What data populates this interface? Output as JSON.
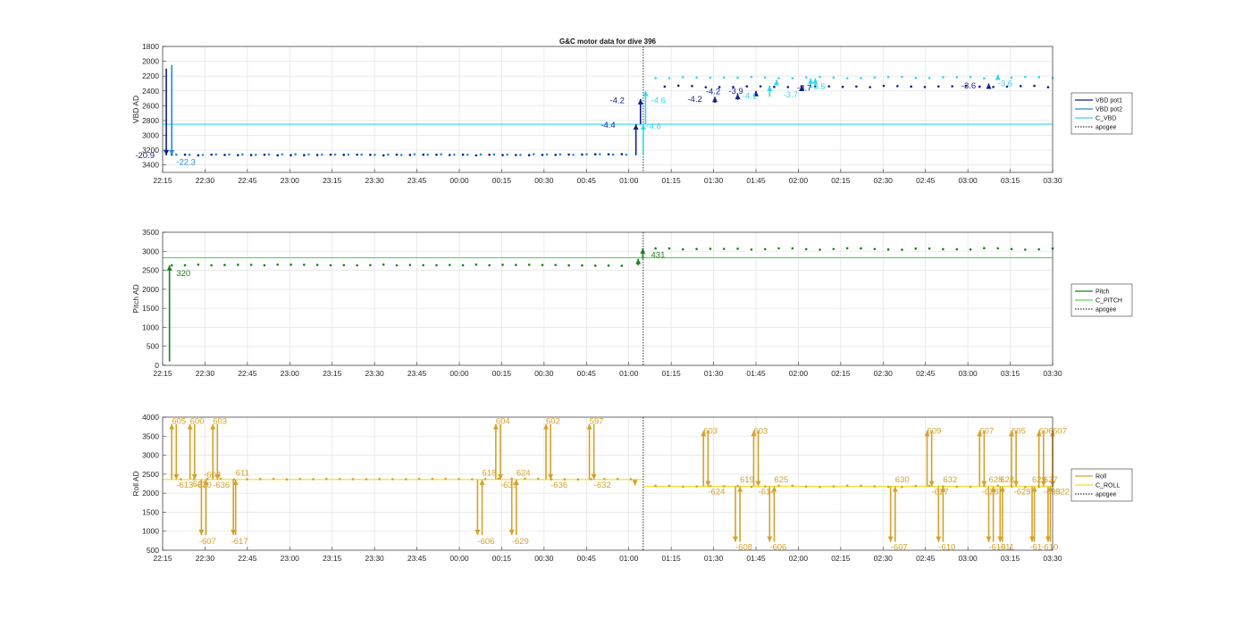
{
  "chart_data": [
    {
      "type": "line",
      "title": "G&C motor data for dive 396",
      "xlabel": "",
      "ylabel": "VBD AD",
      "x_ticks": [
        "22:15",
        "22:30",
        "22:45",
        "23:00",
        "23:15",
        "23:30",
        "23:45",
        "00:00",
        "00:15",
        "00:30",
        "00:45",
        "01:00",
        "01:15",
        "01:30",
        "01:45",
        "02:00",
        "02:15",
        "02:30",
        "02:45",
        "03:00",
        "03:15",
        "03:30"
      ],
      "y_ticks": [
        "1800",
        "2000",
        "2200",
        "2400",
        "2600",
        "2800",
        "3000",
        "3200",
        "3400"
      ],
      "ylim": [
        1800,
        3500
      ],
      "y_reversed": true,
      "x_range_min": [
        0,
        195
      ],
      "grid": true,
      "legend_placement": "right",
      "apogee_min": 105.3,
      "legend": [
        {
          "name": "VBD pot1",
          "color": "#0f1f8c",
          "style": "solid"
        },
        {
          "name": "VBD pot2",
          "color": "#1f8fd8",
          "style": "solid"
        },
        {
          "name": "C_VBD",
          "color": "#33d6f0",
          "style": "solid"
        },
        {
          "name": "apogee",
          "color": "#333333",
          "style": "dotted"
        }
      ],
      "series": [
        {
          "name": "C_VBD",
          "type": "hline",
          "y": 2850,
          "color": "#33d6f0"
        },
        {
          "name": "VBD pot1",
          "color": "#0f1f8c",
          "x_start": 2,
          "x_end": 103,
          "x_step": 2.9,
          "y": 3260
        },
        {
          "name": "VBD pot2",
          "color": "#1f8fd8",
          "x_start": 3,
          "x_end": 103,
          "x_step": 2.9,
          "y": 3255
        },
        {
          "name": "VBD pot1",
          "color": "#0f1f8c",
          "x_start": 110,
          "x_end": 195,
          "x_step": 3,
          "y": 2340
        },
        {
          "name": "VBD pot2",
          "color": "#33d6f0",
          "x_start": 108,
          "x_end": 195,
          "x_step": 3,
          "y": 2220
        }
      ],
      "moves": [
        {
          "x": 0.8,
          "y0": 2100,
          "y1": 3270,
          "color": "#0f1f8c",
          "label": "-20.9",
          "lx": -6,
          "ly": 3270
        },
        {
          "x": 2.0,
          "y0": 2050,
          "y1": 3270,
          "color": "#1f8fd8",
          "label": "-22.3",
          "lx": 3,
          "ly": 3360
        },
        {
          "x": 103.7,
          "y0": 3270,
          "y1": 2850,
          "color": "#0f1f8c",
          "label": "-4.4",
          "lx": 96,
          "ly": 2860
        },
        {
          "x": 104.7,
          "y0": 2850,
          "y1": 2510,
          "color": "#0f1f8c",
          "label": "-4.2",
          "lx": 98,
          "ly": 2530
        },
        {
          "x": 105.3,
          "y0": 3250,
          "y1": 2850,
          "color": "#33d6f0",
          "label": "-4.8",
          "lx": 106,
          "ly": 2880
        },
        {
          "x": 105.8,
          "y0": 2850,
          "y1": 2400,
          "color": "#33d6f0",
          "label": "-4.6",
          "lx": 107,
          "ly": 2530
        },
        {
          "x": 121,
          "y0": 2560,
          "y1": 2480,
          "color": "#0f1f8c",
          "label": "-4.2",
          "lx": 115,
          "ly": 2510
        },
        {
          "x": 126,
          "y0": 2520,
          "y1": 2440,
          "color": "#0f1f8c",
          "label": "-4.2",
          "lx": 119,
          "ly": 2410
        },
        {
          "x": 130,
          "y0": 2460,
          "y1": 2400,
          "color": "#0f1f8c",
          "label": "-3.9",
          "lx": 124,
          "ly": 2400
        },
        {
          "x": 133,
          "y0": 2480,
          "y1": 2330,
          "color": "#33d6f0",
          "label": "-4.1",
          "lx": 127,
          "ly": 2470
        },
        {
          "x": 134.5,
          "y0": 2320,
          "y1": 2250,
          "color": "#33d6f0",
          "label": "",
          "lx": 0,
          "ly": 0
        },
        {
          "x": 142,
          "y0": 2360,
          "y1": 2230,
          "color": "#33d6f0",
          "label": "-3.7",
          "lx": 136,
          "ly": 2450
        },
        {
          "x": 143,
          "y0": 2330,
          "y1": 2230,
          "color": "#33d6f0",
          "label": "-3.5",
          "lx": 142,
          "ly": 2340
        },
        {
          "x": 140,
          "y0": 2380,
          "y1": 2330,
          "color": "#0f1f8c",
          "label": "-3.7",
          "lx": 139,
          "ly": 2360
        },
        {
          "x": 181,
          "y0": 2350,
          "y1": 2300,
          "color": "#0f1f8c",
          "label": "-3.6",
          "lx": 175,
          "ly": 2330
        },
        {
          "x": 183,
          "y0": 2230,
          "y1": 2180,
          "color": "#33d6f0",
          "label": "-3.6",
          "lx": 183,
          "ly": 2300
        }
      ]
    },
    {
      "type": "line",
      "title": "",
      "xlabel": "",
      "ylabel": "Pitch AD",
      "x_ticks": [
        "22:15",
        "22:30",
        "22:45",
        "23:00",
        "23:15",
        "23:30",
        "23:45",
        "00:00",
        "00:15",
        "00:30",
        "00:45",
        "01:00",
        "01:15",
        "01:30",
        "01:45",
        "02:00",
        "02:15",
        "02:30",
        "02:45",
        "03:00",
        "03:15",
        "03:30"
      ],
      "y_ticks": [
        "0",
        "500",
        "1000",
        "1500",
        "2000",
        "2500",
        "3000",
        "3500"
      ],
      "ylim": [
        0,
        3500
      ],
      "y_reversed": false,
      "x_range_min": [
        0,
        195
      ],
      "grid": true,
      "legend_placement": "right",
      "apogee_min": 105.3,
      "legend": [
        {
          "name": "Pitch",
          "color": "#1a7f1a",
          "style": "solid"
        },
        {
          "name": "C_PITCH",
          "color": "#5ad65a",
          "style": "solid"
        },
        {
          "name": "apogee",
          "color": "#333333",
          "style": "dotted"
        }
      ],
      "series": [
        {
          "name": "C_PITCH",
          "type": "hline",
          "y": 2830,
          "color": "#5ad65a"
        },
        {
          "name": "Pitch",
          "color": "#1a7f1a",
          "x_start": 2,
          "x_end": 103,
          "x_step": 2.9,
          "y": 2630
        },
        {
          "name": "Pitch",
          "color": "#1a7f1a",
          "x_start": 108,
          "x_end": 195,
          "x_step": 3,
          "y": 3060
        }
      ],
      "moves": [
        {
          "x": 1.5,
          "y0": 100,
          "y1": 2630,
          "color": "#1a7f1a",
          "label": "320",
          "lx": 3,
          "ly": 2420
        },
        {
          "x": 104.2,
          "y0": 2630,
          "y1": 2800,
          "color": "#1a7f1a",
          "label": "",
          "lx": 0,
          "ly": 0
        },
        {
          "x": 105.2,
          "y0": 2800,
          "y1": 3080,
          "color": "#1a7f1a",
          "label": "431",
          "lx": 107,
          "ly": 2900
        }
      ]
    },
    {
      "type": "line",
      "title": "",
      "xlabel": "",
      "ylabel": "Roll AD",
      "x_ticks": [
        "22:15",
        "22:30",
        "22:45",
        "23:00",
        "23:15",
        "23:30",
        "23:45",
        "00:00",
        "00:15",
        "00:30",
        "00:45",
        "01:00",
        "01:15",
        "01:30",
        "01:45",
        "02:00",
        "02:15",
        "02:30",
        "02:45",
        "03:00",
        "03:15",
        "03:30"
      ],
      "y_ticks": [
        "500",
        "1000",
        "1500",
        "2000",
        "2500",
        "3000",
        "3500",
        "4000"
      ],
      "ylim": [
        500,
        4000
      ],
      "y_reversed": false,
      "x_range_min": [
        0,
        195
      ],
      "grid": true,
      "legend_placement": "right",
      "apogee_min": 105.3,
      "legend": [
        {
          "name": "Roll",
          "color": "#d4a22a",
          "style": "solid"
        },
        {
          "name": "C_ROLL",
          "color": "#f5dc2a",
          "style": "solid"
        },
        {
          "name": "apogee",
          "color": "#333333",
          "style": "dotted"
        }
      ],
      "series": [
        {
          "name": "C_ROLL",
          "type": "hline",
          "y": 2360,
          "x_from": 0,
          "x_to": 105.3,
          "color": "#f5dc2a"
        },
        {
          "name": "C_ROLL",
          "type": "hline",
          "y": 2180,
          "x_from": 105.3,
          "x_to": 195,
          "color": "#f5dc2a"
        },
        {
          "name": "Roll",
          "color": "#d4a22a",
          "x_start": 4,
          "x_end": 103,
          "x_step": 2.9,
          "y": 2360
        },
        {
          "name": "Roll",
          "color": "#d4a22a",
          "x_start": 108,
          "x_end": 195,
          "x_step": 3,
          "y": 2180
        }
      ],
      "moves": [
        {
          "x": 2,
          "y0": 2360,
          "y1": 3820,
          "color": "#d4a22a",
          "label": "605",
          "lx": 2,
          "ly": 3890
        },
        {
          "x": 3,
          "y0": 3820,
          "y1": 2360,
          "color": "#d4a22a",
          "label": "-613",
          "lx": 3,
          "ly": 2220
        },
        {
          "x": 6,
          "y0": 2360,
          "y1": 3820,
          "color": "#d4a22a",
          "label": "600",
          "lx": 6,
          "ly": 3890
        },
        {
          "x": 7,
          "y0": 3820,
          "y1": 2360,
          "color": "#d4a22a",
          "label": "-630",
          "lx": 7,
          "ly": 2220
        },
        {
          "x": 8.5,
          "y0": 2360,
          "y1": 900,
          "color": "#d4a22a",
          "label": "-607",
          "lx": 8,
          "ly": 740
        },
        {
          "x": 9.5,
          "y0": 900,
          "y1": 2360,
          "color": "#d4a22a",
          "label": "-622",
          "lx": 6,
          "ly": 2240
        },
        {
          "x": 11,
          "y0": 2360,
          "y1": 3820,
          "color": "#d4a22a",
          "label": "603",
          "lx": 11,
          "ly": 3890
        },
        {
          "x": 12,
          "y0": 3820,
          "y1": 2360,
          "color": "#d4a22a",
          "label": "-636",
          "lx": 11,
          "ly": 2220
        },
        {
          "x": 9.8,
          "y0": 2360,
          "y1": 2360,
          "color": "#d4a22a",
          "label": "-608",
          "lx": 9,
          "ly": 2480
        },
        {
          "x": 15.5,
          "y0": 2360,
          "y1": 900,
          "color": "#d4a22a",
          "label": "-617",
          "lx": 15,
          "ly": 740
        },
        {
          "x": 16,
          "y0": 900,
          "y1": 2360,
          "color": "#d4a22a",
          "label": "611",
          "lx": 16,
          "ly": 2530
        },
        {
          "x": 69,
          "y0": 2360,
          "y1": 900,
          "color": "#d4a22a",
          "label": "-606",
          "lx": 69,
          "ly": 740
        },
        {
          "x": 70,
          "y0": 900,
          "y1": 2360,
          "color": "#d4a22a",
          "label": "618",
          "lx": 70,
          "ly": 2530
        },
        {
          "x": 73,
          "y0": 2360,
          "y1": 3820,
          "color": "#d4a22a",
          "label": "604",
          "lx": 73,
          "ly": 3890
        },
        {
          "x": 74,
          "y0": 3820,
          "y1": 2360,
          "color": "#d4a22a",
          "label": "-639",
          "lx": 74,
          "ly": 2220
        },
        {
          "x": 76.5,
          "y0": 2360,
          "y1": 900,
          "color": "#d4a22a",
          "label": "-629",
          "lx": 76.5,
          "ly": 740
        },
        {
          "x": 77.5,
          "y0": 900,
          "y1": 2360,
          "color": "#d4a22a",
          "label": "624",
          "lx": 77.5,
          "ly": 2530
        },
        {
          "x": 84,
          "y0": 2360,
          "y1": 3820,
          "color": "#d4a22a",
          "label": "602",
          "lx": 84,
          "ly": 3890
        },
        {
          "x": 85,
          "y0": 3820,
          "y1": 2360,
          "color": "#d4a22a",
          "label": "-636",
          "lx": 85,
          "ly": 2220
        },
        {
          "x": 93.5,
          "y0": 2360,
          "y1": 3820,
          "color": "#d4a22a",
          "label": "597",
          "lx": 93.5,
          "ly": 3890
        },
        {
          "x": 94.5,
          "y0": 3820,
          "y1": 2360,
          "color": "#d4a22a",
          "label": "-632",
          "lx": 94.5,
          "ly": 2220
        },
        {
          "x": 103.5,
          "y0": 2360,
          "y1": 2200,
          "color": "#d4a22a",
          "label": "",
          "lx": 0,
          "ly": 0
        },
        {
          "x": 118.5,
          "y0": 2180,
          "y1": 3640,
          "color": "#d4a22a",
          "label": "603",
          "lx": 118.5,
          "ly": 3640
        },
        {
          "x": 119.5,
          "y0": 3640,
          "y1": 2180,
          "color": "#d4a22a",
          "label": "-624",
          "lx": 119.5,
          "ly": 2040
        },
        {
          "x": 125.5,
          "y0": 2180,
          "y1": 720,
          "color": "#d4a22a",
          "label": "-608",
          "lx": 125.5,
          "ly": 580
        },
        {
          "x": 126.5,
          "y0": 720,
          "y1": 2180,
          "color": "#d4a22a",
          "label": "619",
          "lx": 126.5,
          "ly": 2350
        },
        {
          "x": 129.5,
          "y0": 2180,
          "y1": 3640,
          "color": "#d4a22a",
          "label": "603",
          "lx": 129.5,
          "ly": 3640
        },
        {
          "x": 130.5,
          "y0": 3640,
          "y1": 2180,
          "color": "#d4a22a",
          "label": "-614",
          "lx": 130.5,
          "ly": 2040
        },
        {
          "x": 133,
          "y0": 2180,
          "y1": 720,
          "color": "#d4a22a",
          "label": "-606",
          "lx": 133,
          "ly": 580
        },
        {
          "x": 134,
          "y0": 720,
          "y1": 2180,
          "color": "#d4a22a",
          "label": "625",
          "lx": 134,
          "ly": 2350
        },
        {
          "x": 159.5,
          "y0": 2180,
          "y1": 720,
          "color": "#d4a22a",
          "label": "-607",
          "lx": 159.5,
          "ly": 580
        },
        {
          "x": 160.5,
          "y0": 720,
          "y1": 2180,
          "color": "#d4a22a",
          "label": "630",
          "lx": 160.5,
          "ly": 2350
        },
        {
          "x": 167.5,
          "y0": 2180,
          "y1": 3640,
          "color": "#d4a22a",
          "label": "609",
          "lx": 167.5,
          "ly": 3640
        },
        {
          "x": 168.5,
          "y0": 3640,
          "y1": 2180,
          "color": "#d4a22a",
          "label": "-627",
          "lx": 168.5,
          "ly": 2040
        },
        {
          "x": 170,
          "y0": 2180,
          "y1": 720,
          "color": "#d4a22a",
          "label": "-610",
          "lx": 170,
          "ly": 580
        },
        {
          "x": 171,
          "y0": 720,
          "y1": 2180,
          "color": "#d4a22a",
          "label": "632",
          "lx": 171,
          "ly": 2350
        },
        {
          "x": 179,
          "y0": 2180,
          "y1": 3640,
          "color": "#d4a22a",
          "label": "607",
          "lx": 179,
          "ly": 3640
        },
        {
          "x": 180,
          "y0": 3640,
          "y1": 2180,
          "color": "#d4a22a",
          "label": "-628",
          "lx": 179.5,
          "ly": 2040
        },
        {
          "x": 181,
          "y0": 2180,
          "y1": 720,
          "color": "#d4a22a",
          "label": "-618",
          "lx": 181,
          "ly": 580
        },
        {
          "x": 182,
          "y0": 720,
          "y1": 2180,
          "color": "#d4a22a",
          "label": "628",
          "lx": 181,
          "ly": 2350
        },
        {
          "x": 183.5,
          "y0": 2180,
          "y1": 720,
          "color": "#d4a22a",
          "label": "-611",
          "lx": 183,
          "ly": 580
        },
        {
          "x": 184,
          "y0": 720,
          "y1": 2180,
          "color": "#d4a22a",
          "label": "628",
          "lx": 183.5,
          "ly": 2350
        },
        {
          "x": 186,
          "y0": 2180,
          "y1": 3640,
          "color": "#d4a22a",
          "label": "605",
          "lx": 186,
          "ly": 3640
        },
        {
          "x": 187,
          "y0": 3640,
          "y1": 2180,
          "color": "#d4a22a",
          "label": "-629",
          "lx": 186.5,
          "ly": 2040
        },
        {
          "x": 190.5,
          "y0": 2180,
          "y1": 720,
          "color": "#d4a22a",
          "label": "-61",
          "lx": 190,
          "ly": 580
        },
        {
          "x": 191,
          "y0": 720,
          "y1": 2180,
          "color": "#d4a22a",
          "label": "629",
          "lx": 190.5,
          "ly": 2350
        },
        {
          "x": 192,
          "y0": 2180,
          "y1": 3640,
          "color": "#d4a22a",
          "label": "606",
          "lx": 192,
          "ly": 3640
        },
        {
          "x": 193,
          "y0": 3640,
          "y1": 2180,
          "color": "#d4a22a",
          "label": "-633",
          "lx": 193,
          "ly": 2040
        },
        {
          "x": 194,
          "y0": 2180,
          "y1": 720,
          "color": "#d4a22a",
          "label": "-610",
          "lx": 192.5,
          "ly": 580
        },
        {
          "x": 194.5,
          "y0": 720,
          "y1": 2180,
          "color": "#d4a22a",
          "label": "627",
          "lx": 193,
          "ly": 2350
        },
        {
          "x": 195,
          "y0": 2180,
          "y1": 3640,
          "color": "#d4a22a",
          "label": "607",
          "lx": 195,
          "ly": 3640
        },
        {
          "x": 195,
          "y0": 3640,
          "y1": 2180,
          "color": "#d4a22a",
          "label": "-622",
          "lx": 195,
          "ly": 2040
        }
      ]
    }
  ]
}
